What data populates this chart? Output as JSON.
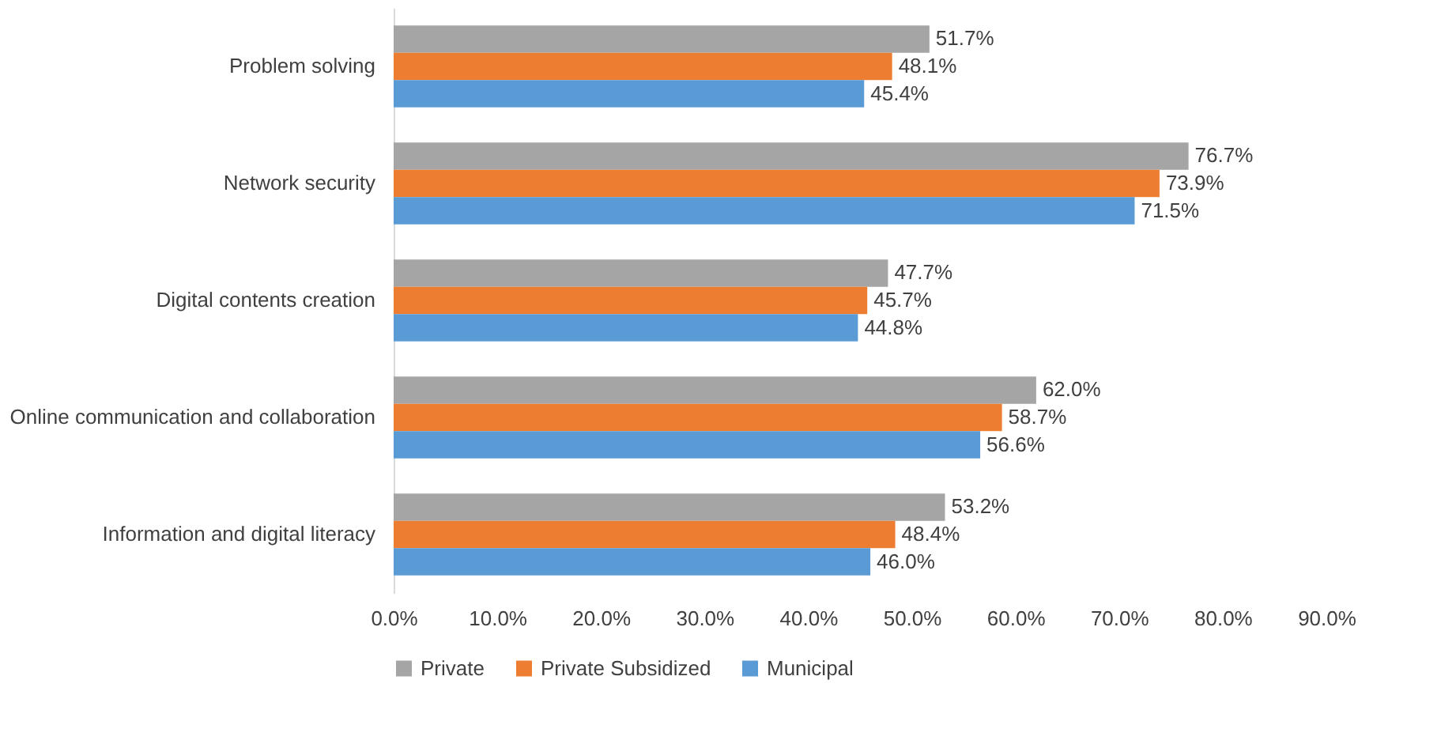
{
  "chart_data": {
    "type": "bar",
    "orientation": "horizontal",
    "categories": [
      "Problem solving",
      "Network security",
      "Digital contents creation",
      "Online communication and collaboration",
      "Information and digital literacy"
    ],
    "series": [
      {
        "name": "Private",
        "color": "#a5a5a5",
        "values": [
          51.7,
          76.7,
          47.7,
          62.0,
          53.2
        ],
        "value_labels": [
          "51.7%",
          "76.7%",
          "47.7%",
          "62.0%",
          "53.2%"
        ]
      },
      {
        "name": "Private Subsidized",
        "color": "#ed7d31",
        "values": [
          48.1,
          73.9,
          45.7,
          58.7,
          48.4
        ],
        "value_labels": [
          "48.1%",
          "73.9%",
          "45.7%",
          "58.7%",
          "48.4%"
        ]
      },
      {
        "name": "Municipal",
        "color": "#5b9bd5",
        "values": [
          45.4,
          71.5,
          44.8,
          56.6,
          46.0
        ],
        "value_labels": [
          "45.4%",
          "71.5%",
          "44.8%",
          "56.6%",
          "46.0%"
        ]
      }
    ],
    "xlim": [
      0,
      90
    ],
    "xticks": [
      {
        "value": 0,
        "label": "0.0%"
      },
      {
        "value": 10,
        "label": "10.0%"
      },
      {
        "value": 20,
        "label": "20.0%"
      },
      {
        "value": 30,
        "label": "30.0%"
      },
      {
        "value": 40,
        "label": "40.0%"
      },
      {
        "value": 50,
        "label": "50.0%"
      },
      {
        "value": 60,
        "label": "60.0%"
      },
      {
        "value": 70,
        "label": "70.0%"
      },
      {
        "value": 80,
        "label": "80.0%"
      },
      {
        "value": 90,
        "label": "90.0%"
      }
    ],
    "grid": false,
    "legend": "bottom"
  }
}
